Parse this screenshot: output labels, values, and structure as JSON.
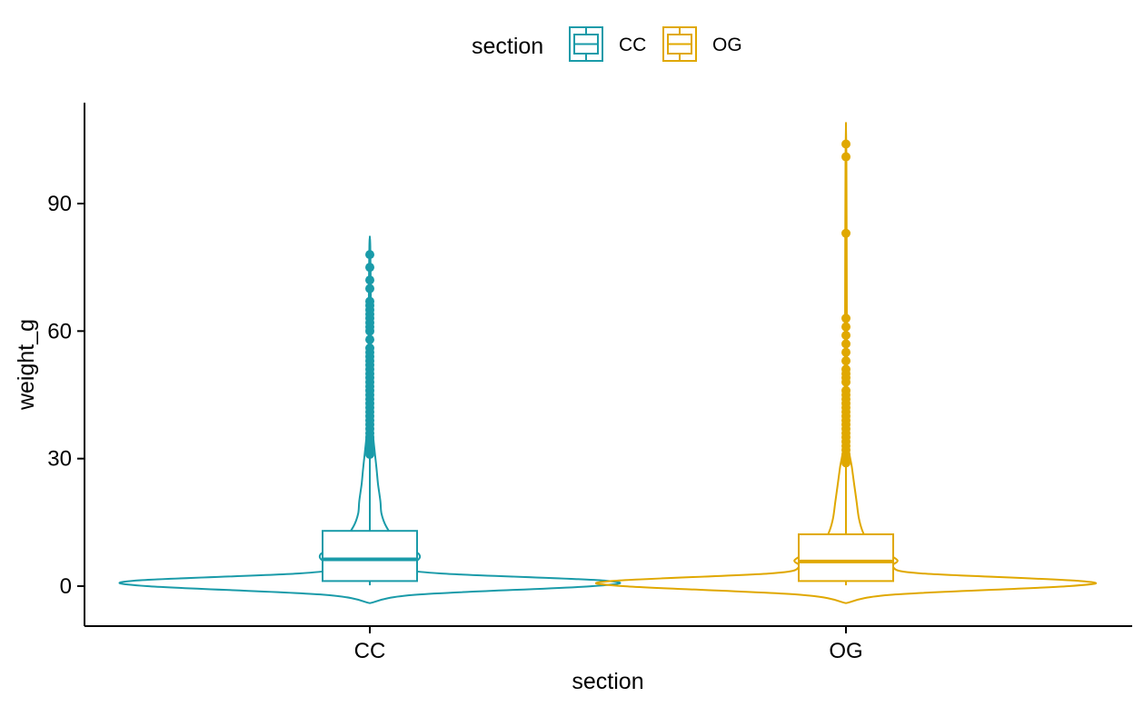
{
  "chart_data": {
    "type": "violin",
    "xlabel": "section",
    "ylabel": "weight_g",
    "categories": [
      "CC",
      "OG"
    ],
    "ylim": [
      -8,
      113
    ],
    "yticks": [
      0,
      30,
      60,
      90
    ],
    "grid": false,
    "legend": {
      "title": "section",
      "position": "top",
      "entries": [
        "CC",
        "OG"
      ]
    },
    "colors": {
      "CC": "#1a9ba9",
      "OG": "#e0a800"
    },
    "series": [
      {
        "name": "CC",
        "box": {
          "q1": 1.2,
          "median": 6.3,
          "q3": 13.0,
          "whisker_low": 0.2,
          "whisker_high": 31.0
        },
        "violin_range": [
          -4,
          82
        ],
        "outliers": [
          31,
          32,
          33,
          34,
          35,
          36,
          37,
          38,
          39,
          40,
          41,
          42,
          43,
          44,
          45,
          46,
          47,
          48,
          49,
          50,
          51,
          52,
          53,
          54,
          55,
          56,
          58,
          60,
          61,
          62,
          63,
          64,
          65,
          66,
          67,
          70,
          72,
          75,
          78
        ],
        "density": [
          [
            -4,
            0.0
          ],
          [
            -2,
            0.2
          ],
          [
            0,
            0.95
          ],
          [
            1.3,
            1.0
          ],
          [
            3,
            0.3
          ],
          [
            4.5,
            0.12
          ],
          [
            6,
            0.2
          ],
          [
            7.5,
            0.21
          ],
          [
            9,
            0.16
          ],
          [
            11,
            0.11
          ],
          [
            14,
            0.07
          ],
          [
            17,
            0.05
          ],
          [
            20,
            0.045
          ],
          [
            24,
            0.035
          ],
          [
            28,
            0.028
          ],
          [
            32,
            0.02
          ],
          [
            36,
            0.013
          ],
          [
            40,
            0.009
          ],
          [
            50,
            0.006
          ],
          [
            60,
            0.005
          ],
          [
            70,
            0.004
          ],
          [
            80,
            0.002
          ],
          [
            82,
            0.0
          ]
        ]
      },
      {
        "name": "OG",
        "box": {
          "q1": 1.2,
          "median": 5.8,
          "q3": 12.2,
          "whisker_low": 0.2,
          "whisker_high": 29.0
        },
        "violin_range": [
          -4,
          108
        ],
        "outliers": [
          29,
          30,
          31,
          32,
          33,
          34,
          35,
          36,
          37,
          38,
          39,
          40,
          41,
          42,
          43,
          44,
          45,
          46,
          48,
          49,
          50,
          51,
          53,
          55,
          57,
          59,
          61,
          63,
          83,
          101,
          104
        ],
        "density": [
          [
            -4,
            0.0
          ],
          [
            -2,
            0.2
          ],
          [
            0,
            0.95
          ],
          [
            1.2,
            1.0
          ],
          [
            3,
            0.32
          ],
          [
            4.5,
            0.2
          ],
          [
            6,
            0.22
          ],
          [
            7.5,
            0.18
          ],
          [
            9,
            0.13
          ],
          [
            11,
            0.09
          ],
          [
            13,
            0.07
          ],
          [
            16,
            0.055
          ],
          [
            20,
            0.045
          ],
          [
            24,
            0.035
          ],
          [
            28,
            0.025
          ],
          [
            32,
            0.012
          ],
          [
            36,
            0.007
          ],
          [
            45,
            0.005
          ],
          [
            60,
            0.004
          ],
          [
            80,
            0.003
          ],
          [
            100,
            0.002
          ],
          [
            108,
            0.0
          ]
        ]
      }
    ]
  }
}
